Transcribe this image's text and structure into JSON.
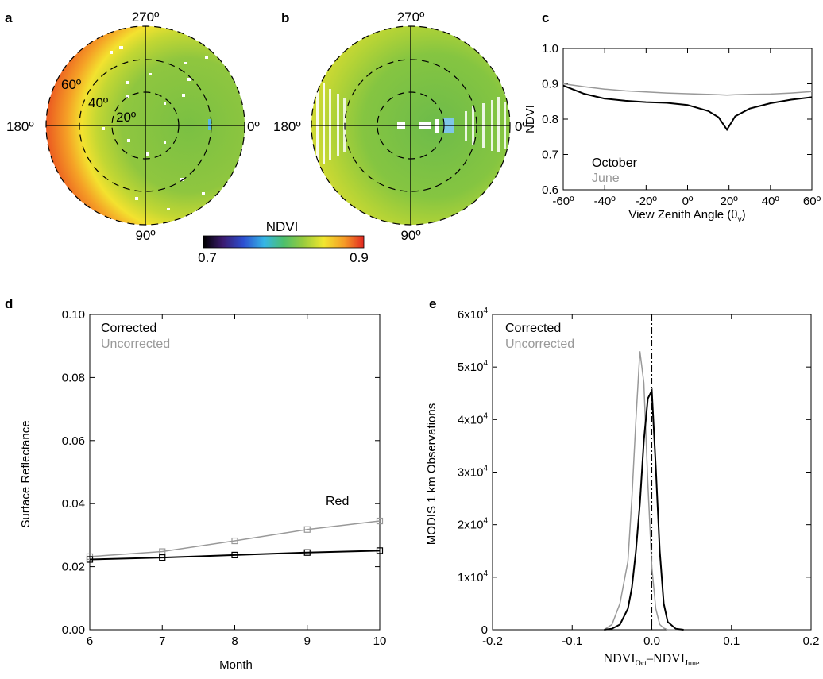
{
  "panels": {
    "a": {
      "label": "a",
      "angles": {
        "top": "270º",
        "bottom": "90º",
        "left": "180º",
        "right": "0º"
      },
      "rings": [
        "20º",
        "40º",
        "60º"
      ]
    },
    "b": {
      "label": "b",
      "angles": {
        "top": "270º",
        "bottom": "90º",
        "left": "180º",
        "right": "0º"
      }
    },
    "colorbar": {
      "title": "NDVI",
      "min_label": "0.7",
      "max_label": "0.9",
      "range": [
        0.7,
        0.9
      ]
    },
    "c": {
      "label": "c"
    },
    "d": {
      "label": "d"
    },
    "e": {
      "label": "e"
    }
  },
  "chart_data": [
    {
      "panel": "a",
      "type": "heatmap",
      "projection": "polar",
      "title": "",
      "color_variable": "NDVI",
      "value_range": [
        0.7,
        0.9
      ],
      "ring_labels": [
        "20º",
        "40º",
        "60º"
      ],
      "azimuth_labels": [
        "0º",
        "90º",
        "180º",
        "270º"
      ]
    },
    {
      "panel": "b",
      "type": "heatmap",
      "projection": "polar",
      "title": "",
      "color_variable": "NDVI",
      "value_range": [
        0.7,
        0.9
      ],
      "azimuth_labels": [
        "0º",
        "90º",
        "180º",
        "270º"
      ]
    },
    {
      "panel": "c",
      "type": "line",
      "title": "",
      "xlabel": "View Zenith Angle (θ",
      "xlabel_sub": "v",
      "xlabel_end": ")",
      "ylabel": "NDVI",
      "xlim": [
        -60,
        60
      ],
      "ylim": [
        0.6,
        1.0
      ],
      "xticks": [
        "-60º",
        "-40º",
        "-20º",
        "0º",
        "20º",
        "40º",
        "60º"
      ],
      "yticks": [
        "0.6",
        "0.7",
        "0.8",
        "0.9",
        "1.0"
      ],
      "x": [
        -60,
        -50,
        -40,
        -30,
        -20,
        -10,
        0,
        10,
        15,
        19,
        23,
        30,
        40,
        50,
        60
      ],
      "series": [
        {
          "name": "October",
          "color": "#000000",
          "values": [
            0.895,
            0.872,
            0.858,
            0.852,
            0.848,
            0.846,
            0.84,
            0.823,
            0.805,
            0.77,
            0.808,
            0.83,
            0.845,
            0.855,
            0.862
          ]
        },
        {
          "name": "June",
          "color": "#999999",
          "values": [
            0.9,
            0.892,
            0.885,
            0.88,
            0.877,
            0.874,
            0.872,
            0.87,
            0.869,
            0.868,
            0.869,
            0.87,
            0.871,
            0.874,
            0.878
          ]
        }
      ],
      "legend": "bottom-left"
    },
    {
      "panel": "d",
      "type": "line",
      "title": "",
      "xlabel": "Month",
      "ylabel": "Surface Reflectance",
      "xlim": [
        6,
        10
      ],
      "ylim": [
        0.0,
        0.1
      ],
      "xticks": [
        "6",
        "7",
        "8",
        "9",
        "10"
      ],
      "yticks": [
        "0.00",
        "0.02",
        "0.04",
        "0.06",
        "0.08",
        "0.10"
      ],
      "x": [
        6,
        7,
        8,
        9,
        10
      ],
      "series": [
        {
          "name": "Corrected",
          "color": "#000000",
          "values": [
            0.0223,
            0.0229,
            0.0237,
            0.0245,
            0.0251
          ]
        },
        {
          "name": "Uncorrected",
          "color": "#999999",
          "values": [
            0.0232,
            0.0248,
            0.0282,
            0.0318,
            0.0345
          ]
        }
      ],
      "annotation": "Red",
      "legend": "top-left"
    },
    {
      "panel": "e",
      "type": "line",
      "title": "",
      "xlabel": "NDVI",
      "xlabel_sub1": "Oct",
      "xlabel_mid": "–NDVI",
      "xlabel_sub2": "June",
      "ylabel": "MODIS 1 km Observations",
      "xlim": [
        -0.2,
        0.2
      ],
      "ylim": [
        0,
        60000
      ],
      "xticks": [
        "-0.2",
        "-0.1",
        "0.0",
        "0.1",
        "0.2"
      ],
      "yticks": [
        "0",
        "1x10",
        "2x10",
        "3x10",
        "4x10",
        "5x10",
        "6x10"
      ],
      "ytick_exponent": "4",
      "x": [
        -0.06,
        -0.05,
        -0.04,
        -0.03,
        -0.025,
        -0.02,
        -0.015,
        -0.01,
        -0.005,
        0.0,
        0.005,
        0.01,
        0.015,
        0.02,
        0.03,
        0.04
      ],
      "series": [
        {
          "name": "Corrected",
          "color": "#000000",
          "values": [
            0,
            200,
            1000,
            4000,
            8000,
            15000,
            24000,
            36000,
            44000,
            45500,
            31000,
            15000,
            5000,
            1500,
            200,
            0
          ]
        },
        {
          "name": "Uncorrected",
          "color": "#999999",
          "values": [
            0,
            1000,
            5000,
            13000,
            25000,
            40000,
            53000,
            47000,
            28000,
            12000,
            4000,
            1000,
            300,
            0,
            0,
            0
          ]
        }
      ],
      "reference_line_x": 0.0,
      "legend": "top-left"
    }
  ]
}
